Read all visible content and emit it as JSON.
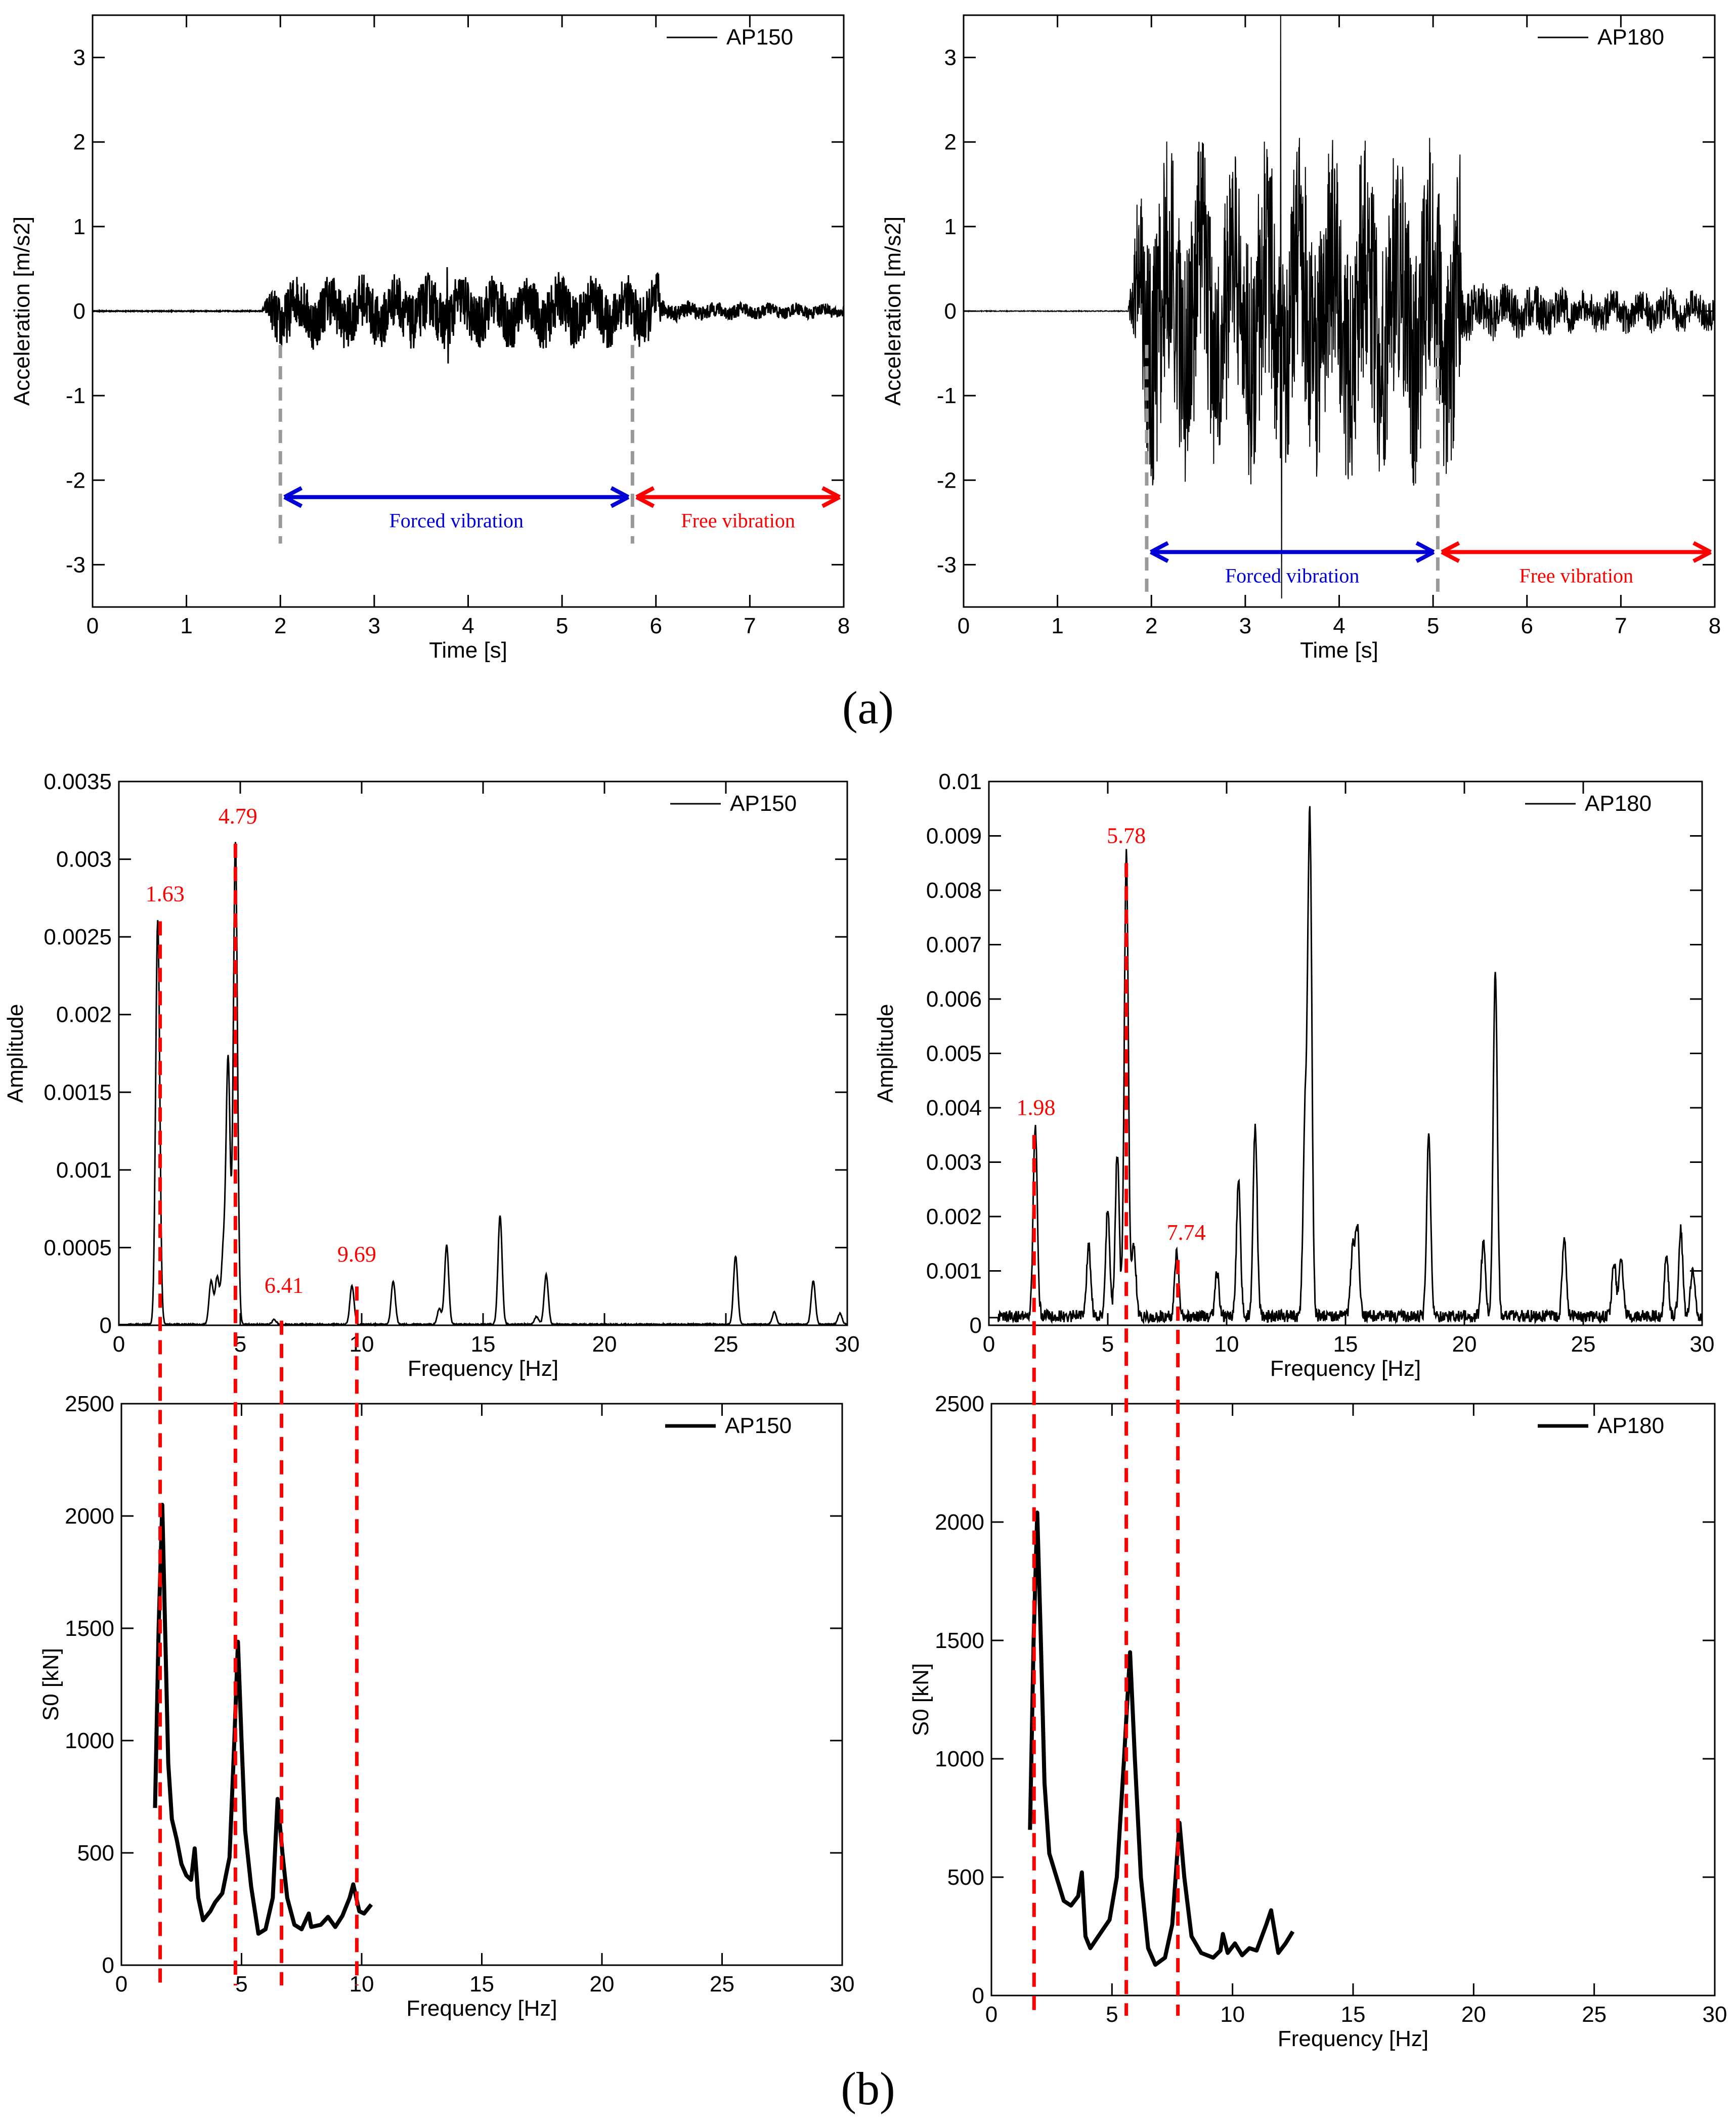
{
  "figure": {
    "label_a": "(a)",
    "label_b": "(b)"
  },
  "chart_data": [
    {
      "id": "a_left",
      "type": "line",
      "title": "",
      "xlabel": "Time [s]",
      "ylabel": "Acceleration [m/s2]",
      "xlim": [
        0,
        8
      ],
      "ylim": [
        -3.5,
        3.5
      ],
      "xticks": [
        0,
        1,
        2,
        3,
        4,
        5,
        6,
        7,
        8
      ],
      "yticks": [
        -3,
        -2,
        -1,
        0,
        1,
        2,
        3
      ],
      "legend": {
        "label": "AP150",
        "position": "top-right"
      },
      "signal": {
        "quiet_until": 1.8,
        "forced_end": 5.75,
        "forced_amplitude": 0.58,
        "free_amplitude": 0.1,
        "peak_max": 0.52,
        "peak_min": -0.62
      },
      "markers": [
        2.0,
        5.75
      ],
      "spans": [
        {
          "label": "Forced vibration",
          "from": 2.0,
          "to": 5.75,
          "y": -2.2,
          "color": "#0000d6"
        },
        {
          "label": "Free vibration",
          "from": 5.75,
          "to": 8.0,
          "y": -2.2,
          "color": "#ff0000"
        }
      ]
    },
    {
      "id": "a_right",
      "type": "line",
      "title": "",
      "xlabel": "Time [s]",
      "ylabel": "Acceleration [m/s2]",
      "xlim": [
        0,
        8
      ],
      "ylim": [
        -3.5,
        3.5
      ],
      "xticks": [
        0,
        1,
        2,
        3,
        4,
        5,
        6,
        7,
        8
      ],
      "yticks": [
        -3,
        -2,
        -1,
        0,
        1,
        2,
        3
      ],
      "legend": {
        "label": "AP180",
        "position": "top-right"
      },
      "signal": {
        "quiet_until": 1.75,
        "forced_end": 5.0,
        "forced_amplitude": 2.6,
        "free_amplitude": 0.3,
        "peak_max": 3.5,
        "peak_min": -3.4
      },
      "markers": [
        1.95,
        5.05
      ],
      "spans": [
        {
          "label": "Forced vibration",
          "from": 1.95,
          "to": 5.05,
          "y": -2.85,
          "color": "#0000d6"
        },
        {
          "label": "Free vibration",
          "from": 5.05,
          "to": 8.0,
          "y": -2.85,
          "color": "#ff0000"
        }
      ]
    },
    {
      "id": "b_top_left",
      "type": "line",
      "title": "",
      "xlabel": "Frequency [Hz]",
      "ylabel": "Amplitude",
      "xlim": [
        0,
        30
      ],
      "ylim": [
        0,
        0.0035
      ],
      "xticks": [
        0,
        5,
        10,
        15,
        20,
        25,
        30
      ],
      "yticks": [
        0,
        0.0005,
        0.001,
        0.0015,
        0.002,
        0.0025,
        0.003,
        0.0035
      ],
      "ytick_labels": [
        "0",
        "0.0005",
        "0.001",
        "0.0015",
        "0.002",
        "0.0025",
        "0.003",
        "0.0035"
      ],
      "legend": {
        "label": "AP150",
        "position": "top-right"
      },
      "peaks": [
        [
          1.6,
          0.0026
        ],
        [
          3.8,
          0.00028
        ],
        [
          4.05,
          0.0003
        ],
        [
          4.3,
          0.00045
        ],
        [
          4.5,
          0.0017
        ],
        [
          4.8,
          0.0031
        ],
        [
          6.4,
          3e-05
        ],
        [
          9.6,
          0.00025
        ],
        [
          11.3,
          0.00028
        ],
        [
          13.2,
          0.0001
        ],
        [
          13.5,
          0.00051
        ],
        [
          15.7,
          0.0007
        ],
        [
          17.2,
          5e-05
        ],
        [
          17.6,
          0.00032
        ],
        [
          25.4,
          0.00044
        ],
        [
          27.0,
          8e-05
        ],
        [
          28.6,
          0.00028
        ],
        [
          29.7,
          7e-05
        ]
      ],
      "annotations": [
        {
          "label": "1.63",
          "x": 1.9,
          "y": 0.0026
        },
        {
          "label": "4.79",
          "x": 4.9,
          "y": 0.0031
        },
        {
          "label": "6.41",
          "x": 6.8,
          "y": 8e-05
        },
        {
          "label": "9.69",
          "x": 9.8,
          "y": 0.00028
        }
      ]
    },
    {
      "id": "b_top_right",
      "type": "line",
      "title": "",
      "xlabel": "Frequency [Hz]",
      "ylabel": "Amplitude",
      "xlim": [
        0,
        30
      ],
      "ylim": [
        0,
        0.01
      ],
      "xticks": [
        0,
        5,
        10,
        15,
        20,
        25,
        30
      ],
      "yticks": [
        0,
        0.001,
        0.002,
        0.003,
        0.004,
        0.005,
        0.006,
        0.007,
        0.008,
        0.009,
        0.01
      ],
      "ytick_labels": [
        "0",
        "0.001",
        "0.002",
        "0.003",
        "0.004",
        "0.005",
        "0.006",
        "0.007",
        "0.008",
        "0.009",
        "0.01"
      ],
      "legend": {
        "label": "AP180",
        "position": "top-right"
      },
      "peaks": [
        [
          1.95,
          0.0035
        ],
        [
          4.2,
          0.0013
        ],
        [
          5.0,
          0.002
        ],
        [
          5.4,
          0.003
        ],
        [
          5.78,
          0.0085
        ],
        [
          6.1,
          0.0013
        ],
        [
          7.9,
          0.0012
        ],
        [
          9.6,
          0.0008
        ],
        [
          10.5,
          0.0025
        ],
        [
          11.2,
          0.0035
        ],
        [
          13.3,
          0.0035
        ],
        [
          13.5,
          0.0091
        ],
        [
          15.3,
          0.0012
        ],
        [
          15.5,
          0.0016
        ],
        [
          18.5,
          0.0033
        ],
        [
          20.8,
          0.0014
        ],
        [
          21.3,
          0.0064
        ],
        [
          24.2,
          0.0014
        ],
        [
          26.3,
          0.001
        ],
        [
          26.6,
          0.0011
        ],
        [
          28.5,
          0.0011
        ],
        [
          29.1,
          0.0016
        ],
        [
          29.6,
          0.0009
        ]
      ],
      "annotations": [
        {
          "label": "1.98",
          "x": 1.98,
          "y": 0.0035
        },
        {
          "label": "5.78",
          "x": 5.78,
          "y": 0.0085
        },
        {
          "label": "7.74",
          "x": 8.3,
          "y": 0.0012
        }
      ]
    },
    {
      "id": "b_bottom_left",
      "type": "line",
      "title": "",
      "xlabel": "Frequency [Hz]",
      "ylabel": "S0 [kN]",
      "xlim": [
        0,
        30
      ],
      "ylim": [
        0,
        2500
      ],
      "xticks": [
        0,
        5,
        10,
        15,
        20,
        25,
        30
      ],
      "yticks": [
        0,
        500,
        1000,
        1500,
        2000,
        2500
      ],
      "legend": {
        "label": "AP150",
        "position": "top-right"
      },
      "points": [
        [
          1.4,
          700
        ],
        [
          1.55,
          1500
        ],
        [
          1.7,
          2050
        ],
        [
          1.82,
          1500
        ],
        [
          1.95,
          900
        ],
        [
          2.1,
          650
        ],
        [
          2.3,
          560
        ],
        [
          2.5,
          450
        ],
        [
          2.7,
          400
        ],
        [
          2.9,
          380
        ],
        [
          3.05,
          520
        ],
        [
          3.2,
          300
        ],
        [
          3.4,
          200
        ],
        [
          3.7,
          240
        ],
        [
          3.9,
          280
        ],
        [
          4.2,
          320
        ],
        [
          4.5,
          480
        ],
        [
          4.7,
          1000
        ],
        [
          4.85,
          1440
        ],
        [
          5.0,
          1000
        ],
        [
          5.15,
          600
        ],
        [
          5.4,
          350
        ],
        [
          5.7,
          140
        ],
        [
          6.0,
          160
        ],
        [
          6.3,
          300
        ],
        [
          6.5,
          740
        ],
        [
          6.7,
          500
        ],
        [
          6.9,
          300
        ],
        [
          7.2,
          180
        ],
        [
          7.5,
          160
        ],
        [
          7.8,
          230
        ],
        [
          7.9,
          170
        ],
        [
          8.3,
          180
        ],
        [
          8.6,
          215
        ],
        [
          8.9,
          170
        ],
        [
          9.2,
          220
        ],
        [
          9.5,
          300
        ],
        [
          9.65,
          360
        ],
        [
          9.9,
          240
        ],
        [
          10.1,
          230
        ],
        [
          10.4,
          270
        ]
      ],
      "guides": [
        1.7,
        4.8,
        6.7,
        9.8
      ]
    },
    {
      "id": "b_bottom_right",
      "type": "line",
      "title": "",
      "xlabel": "Frequency [Hz]",
      "ylabel": "S0 [kN]",
      "xlim": [
        0,
        30
      ],
      "ylim": [
        0,
        2500
      ],
      "xticks": [
        0,
        5,
        10,
        15,
        20,
        25,
        30
      ],
      "yticks": [
        0,
        500,
        1000,
        1500,
        2000,
        2500
      ],
      "legend": {
        "label": "AP180",
        "position": "top-right"
      },
      "points": [
        [
          1.6,
          700
        ],
        [
          1.75,
          1500
        ],
        [
          1.9,
          2040
        ],
        [
          2.05,
          1500
        ],
        [
          2.2,
          900
        ],
        [
          2.4,
          600
        ],
        [
          2.7,
          500
        ],
        [
          3.0,
          400
        ],
        [
          3.3,
          380
        ],
        [
          3.6,
          420
        ],
        [
          3.75,
          520
        ],
        [
          3.9,
          250
        ],
        [
          4.1,
          200
        ],
        [
          4.5,
          260
        ],
        [
          4.9,
          320
        ],
        [
          5.2,
          500
        ],
        [
          5.5,
          1000
        ],
        [
          5.75,
          1450
        ],
        [
          5.95,
          1000
        ],
        [
          6.2,
          500
        ],
        [
          6.5,
          200
        ],
        [
          6.8,
          130
        ],
        [
          7.2,
          160
        ],
        [
          7.5,
          300
        ],
        [
          7.8,
          730
        ],
        [
          8.0,
          500
        ],
        [
          8.3,
          250
        ],
        [
          8.7,
          180
        ],
        [
          9.2,
          160
        ],
        [
          9.5,
          190
        ],
        [
          9.6,
          260
        ],
        [
          9.8,
          180
        ],
        [
          10.1,
          220
        ],
        [
          10.4,
          170
        ],
        [
          10.7,
          200
        ],
        [
          11.0,
          190
        ],
        [
          11.4,
          300
        ],
        [
          11.6,
          360
        ],
        [
          11.9,
          180
        ],
        [
          12.2,
          220
        ],
        [
          12.5,
          270
        ]
      ],
      "guides": [
        1.9,
        5.78,
        7.95
      ]
    }
  ]
}
